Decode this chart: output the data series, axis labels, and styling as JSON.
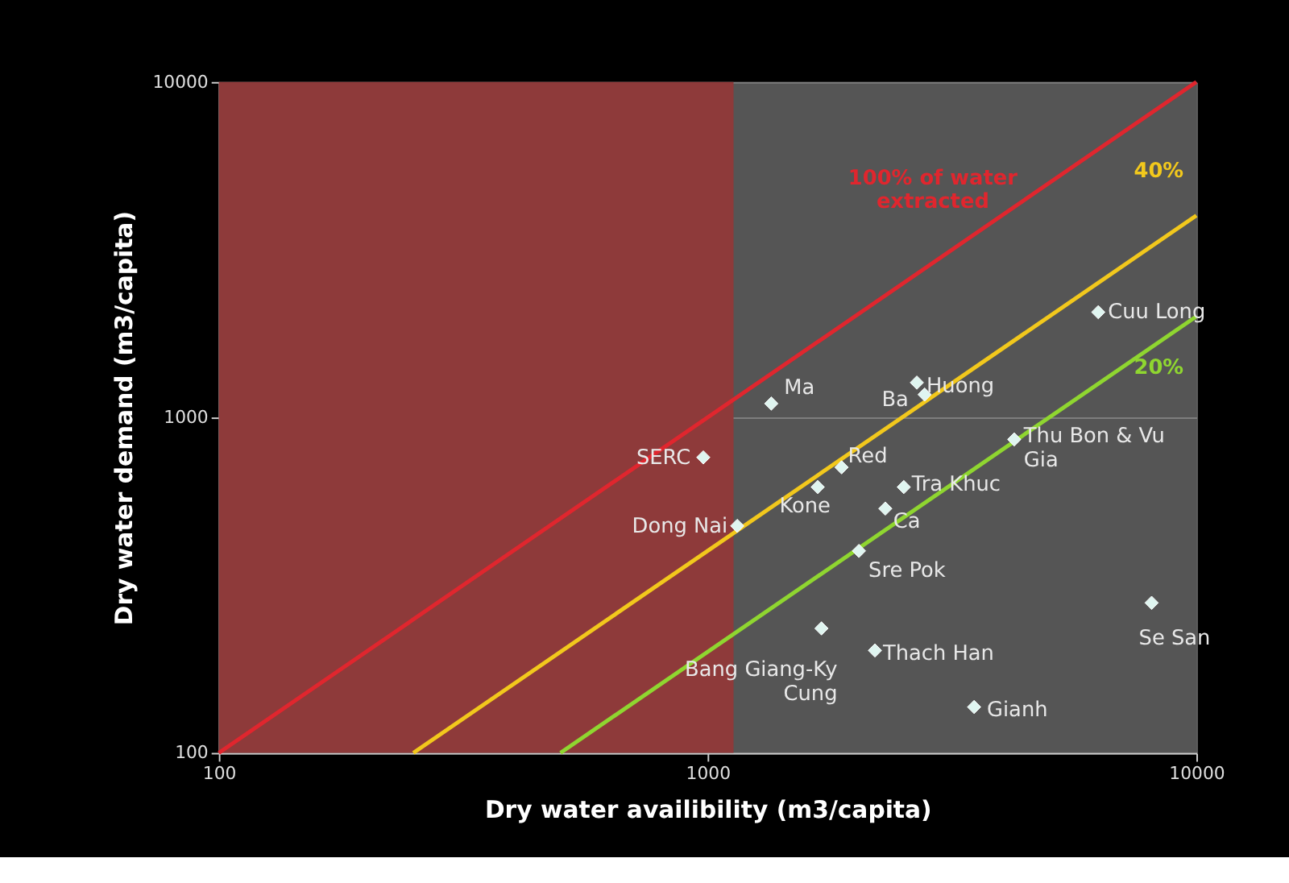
{
  "chart_data": {
    "type": "scatter",
    "xlabel": "Dry water availibility (m3/capita)",
    "ylabel": "Dry water demand (m3/capita)",
    "log": "xy",
    "xlim": [
      100,
      10000
    ],
    "ylim": [
      100,
      10000
    ],
    "xticks": [
      100,
      1000,
      10000
    ],
    "yticks": [
      100,
      1000,
      10000
    ],
    "grid": true,
    "marker": "diamond",
    "bands": [
      {
        "axis": "x",
        "from": 100,
        "to": 1130,
        "color": "#8e3a3a"
      }
    ],
    "series": [
      {
        "type": "line",
        "marker": "none",
        "name": "100% of water extracted",
        "color": "#e0262e",
        "x": [
          100,
          10000
        ],
        "values": [
          100,
          10000
        ]
      },
      {
        "type": "line",
        "marker": "none",
        "name": "40%",
        "color": "#f2c81c",
        "x": [
          250,
          10000
        ],
        "values": [
          100,
          4000
        ]
      },
      {
        "type": "line",
        "marker": "none",
        "name": "20%",
        "color": "#8fd630",
        "x": [
          500,
          10000
        ],
        "values": [
          100,
          2000
        ]
      },
      {
        "color": "#dff5f0",
        "x": [
          6300,
          2680,
          2780,
          1350,
          4240,
          980,
          1880,
          1680,
          2520,
          2310,
          1150,
          2040,
          1710,
          2200,
          3510,
          8100
        ],
        "values": [
          2060,
          1270,
          1170,
          1100,
          860,
          760,
          710,
          620,
          620,
          535,
          475,
          400,
          235,
          202,
          137,
          280
        ]
      }
    ],
    "annotations": [
      {
        "text": "Cuu Long",
        "x": 6300,
        "y": 2060
      },
      {
        "text": "Huong",
        "x": 2680,
        "y": 1270
      },
      {
        "text": "Ba",
        "x": 2780,
        "y": 1170
      },
      {
        "text": "Ma",
        "x": 1350,
        "y": 1100
      },
      {
        "text": "Thu Bon & Vu Gia",
        "x": 4240,
        "y": 860
      },
      {
        "text": "SERC",
        "x": 980,
        "y": 760
      },
      {
        "text": "Red",
        "x": 1880,
        "y": 710
      },
      {
        "text": "Kone",
        "x": 1680,
        "y": 620
      },
      {
        "text": "Tra Khuc",
        "x": 2520,
        "y": 620
      },
      {
        "text": "Ca",
        "x": 2310,
        "y": 535
      },
      {
        "text": "Dong Nai",
        "x": 1150,
        "y": 475
      },
      {
        "text": "Sre Pok",
        "x": 2040,
        "y": 400
      },
      {
        "text": "Bang Giang-Ky Cung",
        "x": 1710,
        "y": 235
      },
      {
        "text": "Thach Han",
        "x": 2200,
        "y": 202
      },
      {
        "text": "Gianh",
        "x": 3510,
        "y": 137
      },
      {
        "text": "Se San",
        "x": 8100,
        "y": 280
      }
    ]
  }
}
